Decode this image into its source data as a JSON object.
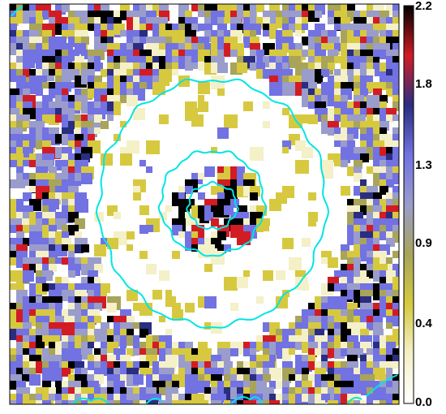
{
  "chart_data": {
    "type": "heatmap",
    "title": "",
    "xlabel": "",
    "ylabel": "",
    "colorbar": {
      "ticks": [
        "2.2",
        "1.8",
        "1.3",
        "0.9",
        "0.4",
        "0.0"
      ],
      "range": [
        0.0,
        2.2
      ],
      "colors": [
        "#ffffff",
        "#f4f0c8",
        "#d6c940",
        "#a8a45a",
        "#9a9ccc",
        "#7272e2",
        "#2a2e80",
        "#d21c24",
        "#000000"
      ]
    },
    "contours": {
      "color": "#00e5e5",
      "levels": 3
    }
  }
}
